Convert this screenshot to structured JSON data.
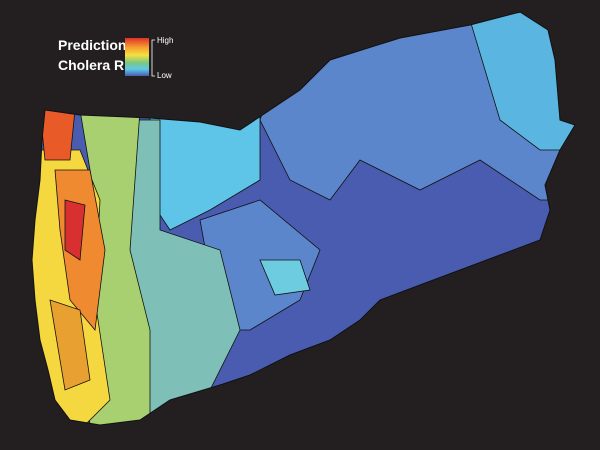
{
  "legend": {
    "title_lines": [
      "Prediction of",
      "Cholera Risk"
    ],
    "high": "High",
    "low": "Low"
  }
}
